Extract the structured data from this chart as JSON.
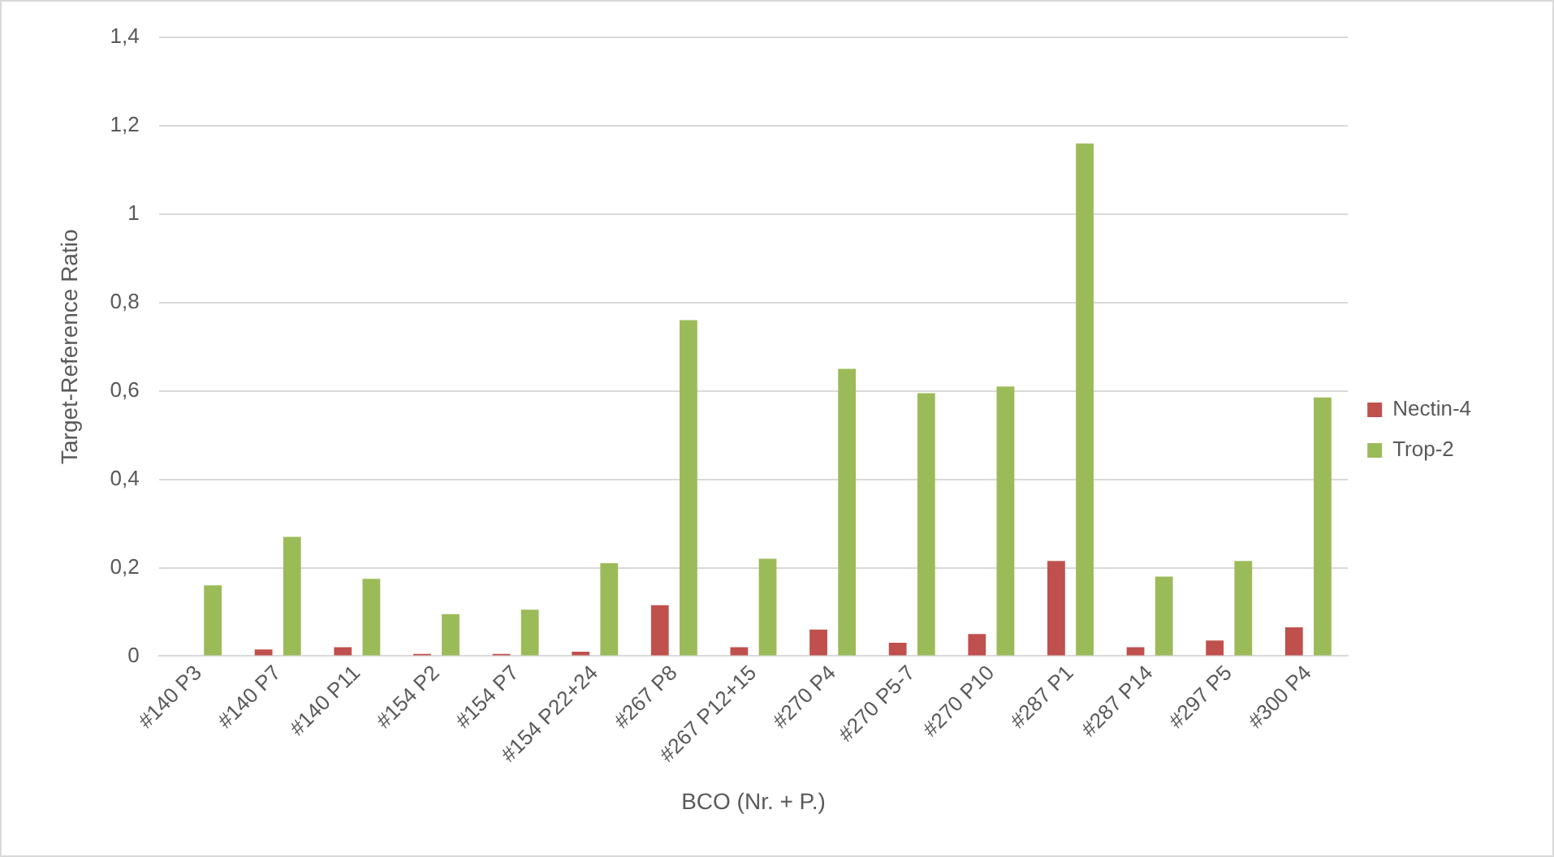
{
  "chart_data": {
    "type": "bar",
    "xlabel": "BCO (Nr. + P.)",
    "ylabel": "Target-Reference Ratio",
    "categories": [
      "#140 P3",
      "#140 P7",
      "#140 P11",
      "#154 P2",
      "#154 P7",
      "#154 P22+24",
      "#267 P8",
      "#267 P12+15",
      "#270 P4",
      "#270 P5-7",
      "#270 P10",
      "#287 P1",
      "#287 P14",
      "#297 P5",
      "#300 P4"
    ],
    "series": [
      {
        "name": "Nectin-4",
        "color": "#c0504d",
        "values": [
          0,
          0.015,
          0.02,
          0.005,
          0.005,
          0.01,
          0.115,
          0.02,
          0.06,
          0.03,
          0.05,
          0.215,
          0.02,
          0.035,
          0.065
        ]
      },
      {
        "name": "Trop-2",
        "color": "#9bbb59",
        "values": [
          0.16,
          0.27,
          0.175,
          0.095,
          0.105,
          0.21,
          0.76,
          0.22,
          0.65,
          0.595,
          0.61,
          1.16,
          0.18,
          0.215,
          0.585
        ]
      }
    ],
    "ylim": [
      0,
      1.4
    ],
    "yticks": [
      0,
      {
        "value": 0.2,
        "label": "0,2"
      },
      {
        "value": 0.4,
        "label": "0,4"
      },
      {
        "value": 0.6,
        "label": "0,6"
      },
      {
        "value": 0.8,
        "label": "0,8"
      },
      1,
      {
        "value": 1.2,
        "label": "1,2"
      },
      {
        "value": 1.4,
        "label": "1,4"
      }
    ],
    "grid": "y",
    "legend": "right"
  }
}
